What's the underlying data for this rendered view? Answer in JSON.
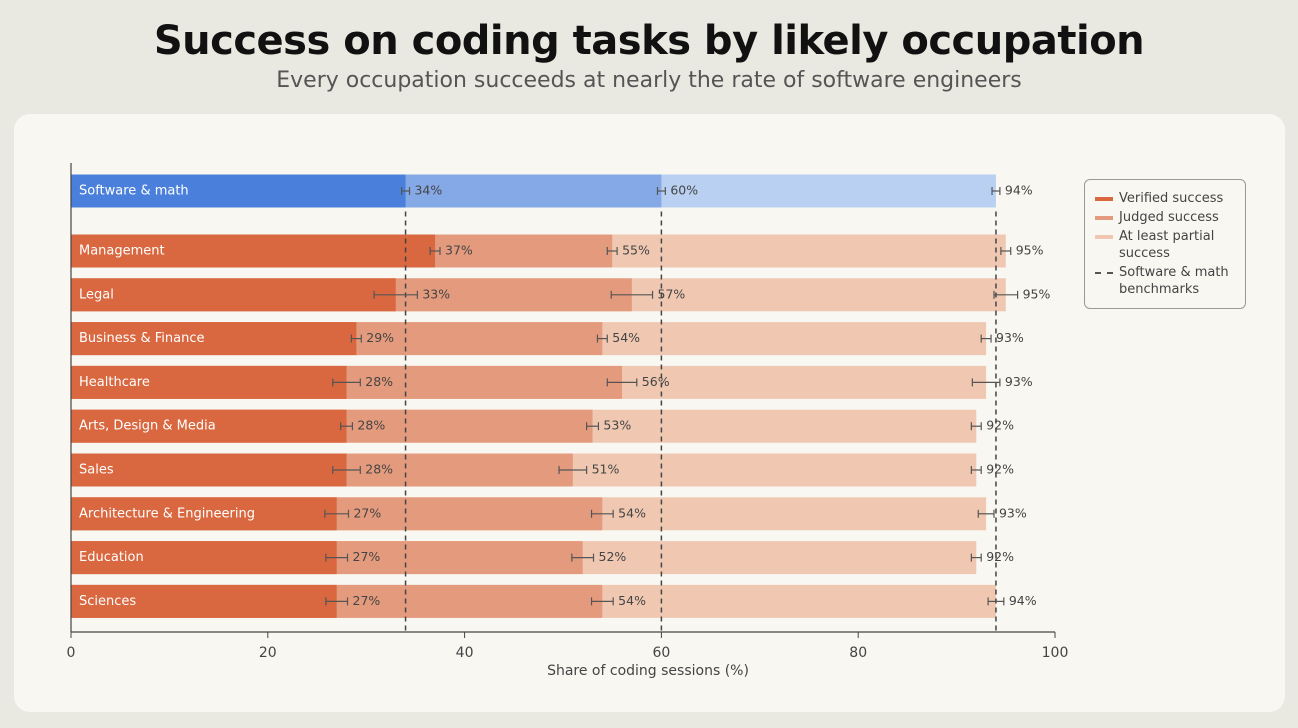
{
  "chart_data": {
    "type": "bar",
    "title": "Success on coding tasks by likely occupation",
    "subtitle": "Every occupation succeeds at nearly the rate of software engineers",
    "x_label": "Share of coding sessions (%)",
    "categories": [
      "Software & math",
      "Management",
      "Legal",
      "Business & Finance",
      "Healthcare",
      "Arts, Design & Media",
      "Sales",
      "Architecture & Engineering",
      "Education",
      "Sciences"
    ],
    "highlight": "Software & math",
    "benchmark_label": "Software & math benchmarks",
    "series": [
      {
        "name": "Verified success",
        "color": "#d9673f",
        "highlight_color": "#4a80dc",
        "values": [
          34,
          37,
          33,
          29,
          28,
          28,
          28,
          27,
          27,
          27
        ],
        "value_labels": [
          "34%",
          "37%",
          "33%",
          "29%",
          "28%",
          "28%",
          "28%",
          "27%",
          "27%",
          "27%"
        ],
        "errors": [
          0.4,
          0.5,
          2.2,
          0.5,
          1.4,
          0.6,
          1.4,
          1.2,
          1.1,
          1.1
        ]
      },
      {
        "name": "Judged success",
        "color": "#e49b7d",
        "highlight_color": "#85a9e6",
        "values": [
          60,
          55,
          57,
          54,
          56,
          53,
          51,
          54,
          52,
          54
        ],
        "value_labels": [
          "60%",
          "55%",
          "57%",
          "54%",
          "56%",
          "53%",
          "51%",
          "54%",
          "52%",
          "54%"
        ],
        "errors": [
          0.4,
          0.5,
          2.1,
          0.5,
          1.5,
          0.6,
          1.4,
          1.1,
          1.1,
          1.1
        ]
      },
      {
        "name": "At least partial success",
        "color": "#f0c8b2",
        "highlight_color": "#bad0f2",
        "values": [
          94,
          95,
          95,
          93,
          93,
          92,
          92,
          93,
          92,
          94
        ],
        "value_labels": [
          "94%",
          "95%",
          "95%",
          "93%",
          "93%",
          "92%",
          "92%",
          "93%",
          "92%",
          "94%"
        ],
        "errors": [
          0.4,
          0.5,
          1.2,
          0.5,
          1.4,
          0.5,
          0.5,
          0.8,
          0.5,
          0.8
        ]
      }
    ],
    "xlim": [
      0,
      100
    ],
    "xticks": [
      0,
      20,
      40,
      60,
      80,
      100
    ]
  }
}
